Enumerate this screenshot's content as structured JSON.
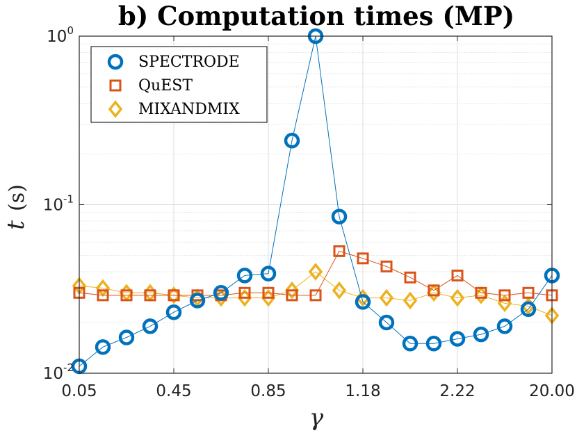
{
  "chart_data": {
    "type": "line",
    "title": "b) Computation times (MP)",
    "xlabel": "γ",
    "ylabel_var": "t",
    "ylabel_unit": "(s)",
    "y_scale": "log",
    "ylim": [
      0.01,
      1
    ],
    "x_tick_labels": [
      "0.05",
      "0.45",
      "0.85",
      "1.18",
      "2.22",
      "20.00"
    ],
    "x_tick_indices": [
      0,
      4,
      8,
      12,
      16,
      20
    ],
    "y_ticks": [
      {
        "value": 1,
        "base": "10",
        "exp": "0"
      },
      {
        "value": 0.1,
        "base": "10",
        "exp": "-1"
      },
      {
        "value": 0.01,
        "base": "10",
        "exp": "-2"
      }
    ],
    "grid": true,
    "legend_position": "top-left",
    "series": [
      {
        "name": "SPECTRODE",
        "color": "#0072BD",
        "marker": "circle",
        "values": [
          0.011,
          0.0143,
          0.0163,
          0.019,
          0.023,
          0.027,
          0.03,
          0.038,
          0.039,
          0.24,
          1.0,
          0.085,
          0.0265,
          0.02,
          0.015,
          0.015,
          0.016,
          0.017,
          0.019,
          0.024,
          0.038
        ]
      },
      {
        "name": "QuEST",
        "color": "#D95319",
        "marker": "square",
        "values": [
          0.03,
          0.029,
          0.029,
          0.029,
          0.029,
          0.029,
          0.029,
          0.03,
          0.03,
          0.029,
          0.029,
          0.053,
          0.048,
          0.043,
          0.037,
          0.031,
          0.038,
          0.03,
          0.029,
          0.03,
          0.029
        ]
      },
      {
        "name": "MIXANDMIX",
        "color": "#EDB120",
        "marker": "diamond",
        "values": [
          0.033,
          0.032,
          0.03,
          0.03,
          0.029,
          0.028,
          0.028,
          0.028,
          0.028,
          0.031,
          0.04,
          0.031,
          0.028,
          0.028,
          0.027,
          0.03,
          0.028,
          0.029,
          0.026,
          0.025,
          0.022
        ]
      }
    ]
  }
}
